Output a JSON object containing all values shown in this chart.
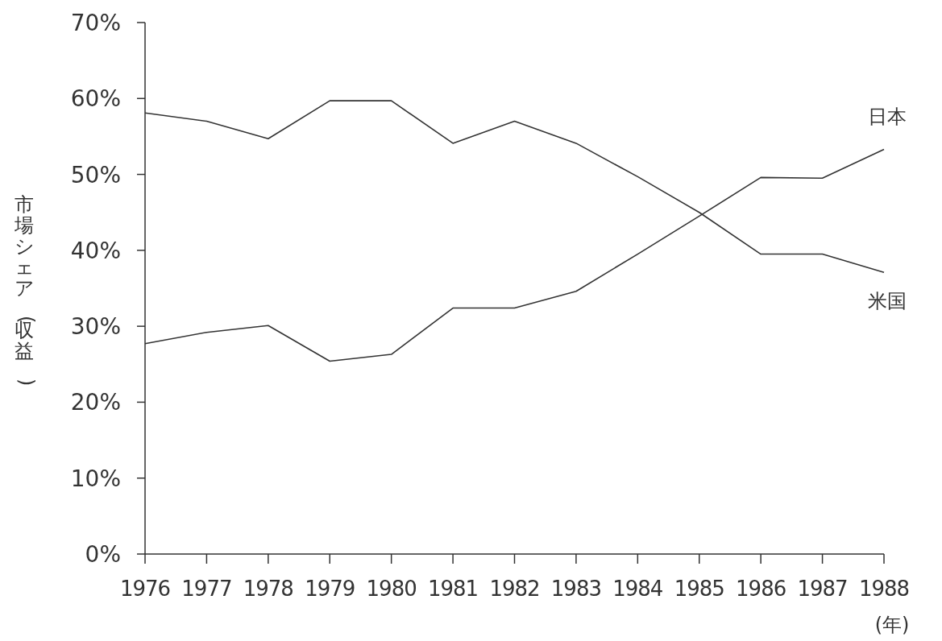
{
  "chart_data": {
    "type": "line",
    "xlabel": "(年)",
    "ylabel": "市場シェア(収益)",
    "x": [
      1976,
      1977,
      1978,
      1979,
      1980,
      1981,
      1982,
      1983,
      1984,
      1985,
      1986,
      1987,
      1988
    ],
    "series": [
      {
        "name": "米国",
        "color": "#333333",
        "values": [
          58.1,
          57.0,
          54.7,
          59.7,
          59.7,
          54.1,
          57.0,
          54.1,
          49.7,
          45.0,
          39.5,
          39.5,
          37.1
        ]
      },
      {
        "name": "日本",
        "color": "#333333",
        "values": [
          27.7,
          29.2,
          30.1,
          25.4,
          26.3,
          32.4,
          32.4,
          34.6,
          39.5,
          44.5,
          49.6,
          49.5,
          53.3
        ]
      }
    ],
    "xlim": [
      1976,
      1988
    ],
    "xticks": [
      1976,
      1977,
      1978,
      1979,
      1980,
      1981,
      1982,
      1983,
      1984,
      1985,
      1986,
      1987,
      1988
    ],
    "ylim": [
      0,
      70
    ],
    "yticks": [
      {
        "value": 0,
        "label": "0%"
      },
      {
        "value": 10,
        "label": "10%"
      },
      {
        "value": 20,
        "label": "20%"
      },
      {
        "value": 30,
        "label": "30%"
      },
      {
        "value": 40,
        "label": "40%"
      },
      {
        "value": 50,
        "label": "50%"
      },
      {
        "value": 60,
        "label": "60%"
      },
      {
        "value": 70,
        "label": "70%"
      }
    ],
    "grid": false,
    "legend": false,
    "marker": "none",
    "line_style": "solid"
  }
}
